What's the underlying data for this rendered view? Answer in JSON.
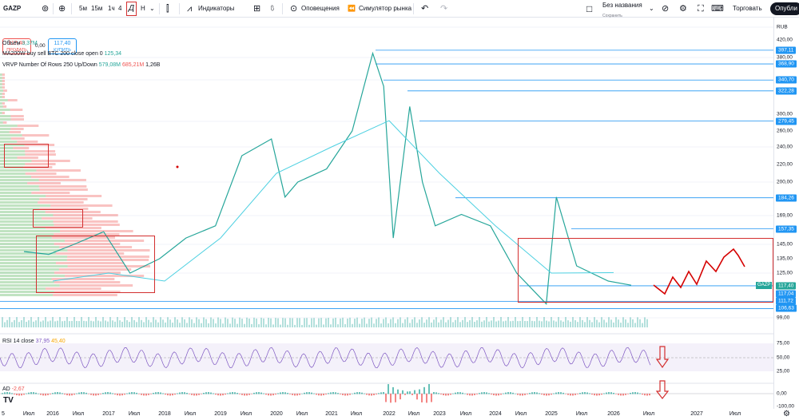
{
  "toolbar": {
    "symbol": "GAZP",
    "timeframes": [
      "5м",
      "15м",
      "1ч",
      "4",
      "Н"
    ],
    "indicators": "Индикаторы",
    "alerts": "Оповещения",
    "replay": "Симулятор рынка",
    "layout_name": "Без названия",
    "layout_saved": "Сохранить",
    "trade": "Торговать",
    "publish": "Опубли"
  },
  "trade": {
    "sell_price": "117,40",
    "sell_label": "ПРОДАТЬ",
    "spread": "0,00",
    "buy_price": "117,40",
    "buy_label": "КУПИТЬ"
  },
  "legends": {
    "volume_label": "Объём",
    "volume_value": "3,37M",
    "ma_label": "MA200W buy sell BTC 200 close open 0",
    "ma_value": "125,34",
    "vrvp_label": "VRVP Number Of Rows 250 Up/Down",
    "vrvp_up": "579,08M",
    "vrvp_down": "685,21M",
    "vrvp_total": "1,26B",
    "rsi_label": "RSI 14 close",
    "rsi_value": "37,95",
    "rsi_ma": "45,40",
    "ad_label": "AD",
    "ad_value": "-2,67"
  },
  "price_axis": {
    "currency": "RUB",
    "ticks": [
      "420,00",
      "400,00",
      "380,00",
      "360,00",
      "340,00",
      "320,00",
      "300,00",
      "280,00",
      "260,00",
      "240,00",
      "220,00",
      "200,00",
      "185,00",
      "169,00",
      "155,00",
      "145,00",
      "135,00",
      "125,00",
      "115,00",
      "107,00",
      "99,00"
    ],
    "badges": [
      "397,11",
      "368,90",
      "340,70",
      "322,28",
      "279,45",
      "184,26",
      "157,35",
      "117,40",
      "117,04",
      "111,72",
      "106,63"
    ],
    "current_symbol": "GAZP",
    "rsi_ticks": [
      "75,00",
      "50,00",
      "25,00"
    ],
    "ad_ticks": [
      "0,00",
      "-100,00"
    ]
  },
  "time_axis": [
    "5",
    "Июл",
    "2016",
    "Июл",
    "2017",
    "Июл",
    "2018",
    "Июл",
    "2019",
    "Июл",
    "2020",
    "Июл",
    "2021",
    "Июл",
    "2022",
    "Июл",
    "2023",
    "Июл",
    "2024",
    "Июл",
    "2025",
    "Июл",
    "2026",
    "Июл",
    "2027",
    "Июл"
  ],
  "chart_data": {
    "type": "line",
    "title": "GAZP",
    "ylabel": "RUB",
    "ylim": [
      99,
      420
    ],
    "series": [
      {
        "name": "GAZP",
        "x": [
          "2015-06",
          "2015-12",
          "2016-06",
          "2016-12",
          "2017-06",
          "2017-12",
          "2018-06",
          "2018-12",
          "2019-06",
          "2019-12",
          "2020-03",
          "2020-06",
          "2020-12",
          "2021-06",
          "2021-10",
          "2021-12",
          "2022-02",
          "2022-06",
          "2022-09",
          "2022-12",
          "2023-06",
          "2023-12",
          "2024-06",
          "2024-12",
          "2025-02",
          "2025-06",
          "2025-12",
          "2026-04"
        ],
        "values": [
          140,
          138,
          145,
          155,
          125,
          135,
          150,
          160,
          230,
          250,
          185,
          200,
          215,
          260,
          390,
          330,
          150,
          300,
          200,
          160,
          170,
          160,
          125,
          110,
          185,
          130,
          120,
          117.4
        ]
      },
      {
        "name": "MA200W",
        "x": [
          "2016",
          "2017",
          "2018",
          "2019",
          "2020",
          "2021",
          "2022",
          "2023",
          "2024",
          "2025",
          "2026"
        ],
        "values": [
          120,
          125,
          120,
          150,
          210,
          240,
          280,
          210,
          160,
          125,
          125.34
        ]
      }
    ]
  },
  "colors": {
    "up": "#26a69a",
    "down": "#ef5350",
    "level": "#2196f3",
    "box": "#d32f2f",
    "price": "#26a69a",
    "rsi": "#7e57c2"
  }
}
